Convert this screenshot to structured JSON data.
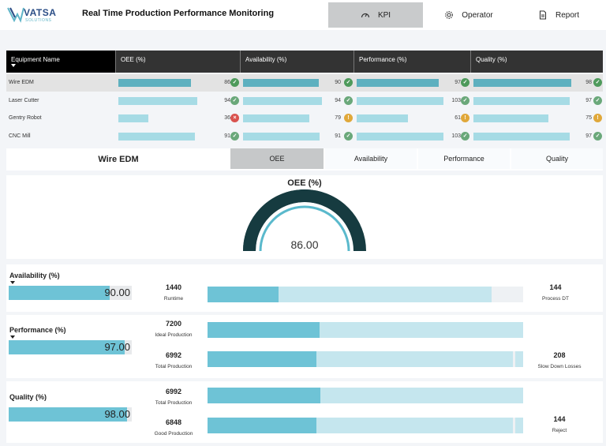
{
  "header": {
    "logo_text": "VATSA",
    "logo_sub": "SOLUTIONS",
    "title": "Real Time Production Performance Monitoring",
    "nav": [
      {
        "label": "KPI",
        "icon": "gauge-icon",
        "active": true
      },
      {
        "label": "Operator",
        "icon": "gear-icon",
        "active": false
      },
      {
        "label": "Report",
        "icon": "document-icon",
        "active": false
      }
    ]
  },
  "table": {
    "columns": [
      "Equipment Name",
      "OEE (%)",
      "Availability (%)",
      "Performance (%)",
      "Quality (%)"
    ],
    "rows": [
      {
        "name": "Wire EDM",
        "selected": true,
        "oee": 86,
        "oee_status": "ok",
        "availability": 90,
        "availability_status": "ok",
        "performance": 97,
        "performance_status": "ok",
        "quality": 98,
        "quality_status": "ok"
      },
      {
        "name": "Laser Cutter",
        "selected": false,
        "oee": 94,
        "oee_status": "ok",
        "availability": 94,
        "availability_status": "ok",
        "performance": 103,
        "performance_status": "ok",
        "quality": 97,
        "quality_status": "ok"
      },
      {
        "name": "Gentry Robot",
        "selected": false,
        "oee": 36,
        "oee_status": "bad",
        "availability": 79,
        "availability_status": "warn",
        "performance": 61,
        "performance_status": "warn",
        "quality": 75,
        "quality_status": "warn"
      },
      {
        "name": "CNC Mill",
        "selected": false,
        "oee": 91,
        "oee_status": "ok",
        "availability": 91,
        "availability_status": "ok",
        "performance": 103,
        "performance_status": "ok",
        "quality": 97,
        "quality_status": "ok"
      }
    ]
  },
  "status_colors": {
    "ok": "#6aa87a",
    "warn": "#e0a83a",
    "bad": "#d9534f",
    "selected_ok": "#4e9a5b"
  },
  "colors": {
    "bar_light": "#a6dbe5",
    "bar_selected": "#5eb0bf",
    "gauge_dark": "#163b40",
    "gauge_light": "#5ab9cc",
    "accent": "#6ec3d6"
  },
  "tabs": {
    "title": "Wire EDM",
    "items": [
      "OEE",
      "Availability",
      "Performance",
      "Quality"
    ],
    "active_index": 0
  },
  "gauge": {
    "title": "OEE (%)",
    "value_text": "86.00",
    "value": 86,
    "max": 100
  },
  "availability": {
    "title": "Availability (%)",
    "value_text": "90.00",
    "value": 90,
    "runtime": "1440",
    "runtime_label": "Runtime",
    "process_dt": "144",
    "process_dt_label": "Process DT"
  },
  "performance": {
    "title": "Performance (%)",
    "value_text": "97.00",
    "value": 97,
    "ideal": "7200",
    "ideal_label": "Ideal Production",
    "total": "6992",
    "total_label": "Total Production",
    "slow_down": "208",
    "slow_down_label": "Slow Down Losses"
  },
  "quality": {
    "title": "Quality (%)",
    "value_text": "98.00",
    "value": 98,
    "total": "6992",
    "total_label": "Total Production",
    "good": "6848",
    "good_label": "Good Production",
    "reject": "144",
    "reject_label": "Reject"
  },
  "bar_fractions": {
    "runtime_fill": 0.225,
    "runtime_total": 0.9,
    "runtime_end": 0.93,
    "ideal_fill": 0.355,
    "ideal_total": 1.0,
    "total_fill": 0.345,
    "total_total": 0.968,
    "total_end": 0.975,
    "q_total_fill": 0.358,
    "q_total_total": 1.0,
    "good_fill": 0.345,
    "good_total": 0.968,
    "good_end": 0.975
  }
}
